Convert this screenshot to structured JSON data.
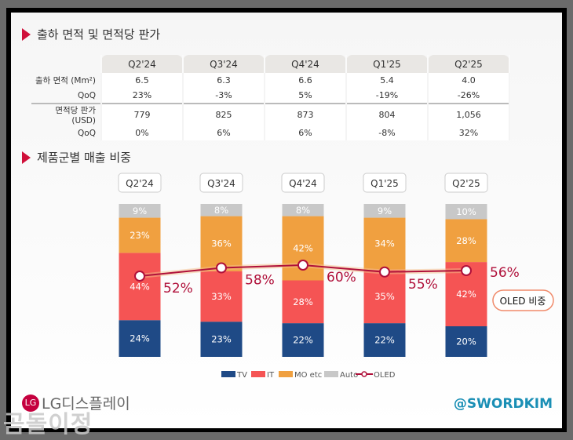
{
  "section1": {
    "title": "출하 면적 및 면적당 판가"
  },
  "table": {
    "headers": [
      "Q2'24",
      "Q3'24",
      "Q4'24",
      "Q1'25",
      "Q2'25"
    ],
    "rows": [
      {
        "label": "출하 면적 (Mm²)",
        "values": [
          "6.5",
          "6.3",
          "6.6",
          "5.4",
          "4.0"
        ]
      },
      {
        "label": "QoQ",
        "values": [
          "23%",
          "-3%",
          "5%",
          "-19%",
          "-26%"
        ]
      },
      {
        "label": "면적당 판가 (USD)",
        "values": [
          "779",
          "825",
          "873",
          "804",
          "1,056"
        ]
      },
      {
        "label": "QoQ",
        "values": [
          "0%",
          "6%",
          "6%",
          "-8%",
          "32%"
        ]
      }
    ]
  },
  "section2": {
    "title": "제품군별 매출 비중"
  },
  "chart_data": {
    "type": "bar",
    "stacked": true,
    "categories": [
      "Q2'24",
      "Q3'24",
      "Q4'24",
      "Q1'25",
      "Q2'25"
    ],
    "series": [
      {
        "name": "TV",
        "color": "#1f4a86",
        "values": [
          24,
          23,
          22,
          22,
          20
        ]
      },
      {
        "name": "IT",
        "color": "#f55454",
        "values": [
          44,
          33,
          28,
          35,
          42
        ]
      },
      {
        "name": "MO etc",
        "color": "#f0a040",
        "values": [
          23,
          36,
          42,
          34,
          28
        ]
      },
      {
        "name": "Auto",
        "color": "#c8c8c8",
        "values": [
          9,
          8,
          8,
          9,
          10
        ]
      }
    ],
    "line": {
      "name": "OLED",
      "color": "#b0103a",
      "values": [
        52,
        58,
        60,
        55,
        56
      ]
    },
    "annotation": "OLED 비중",
    "legend_position": "bottom",
    "grid": false
  },
  "footer": {
    "logo": "LG디스플레이",
    "handle": "@SWORDKIM",
    "watermark": "곰돌이정"
  }
}
